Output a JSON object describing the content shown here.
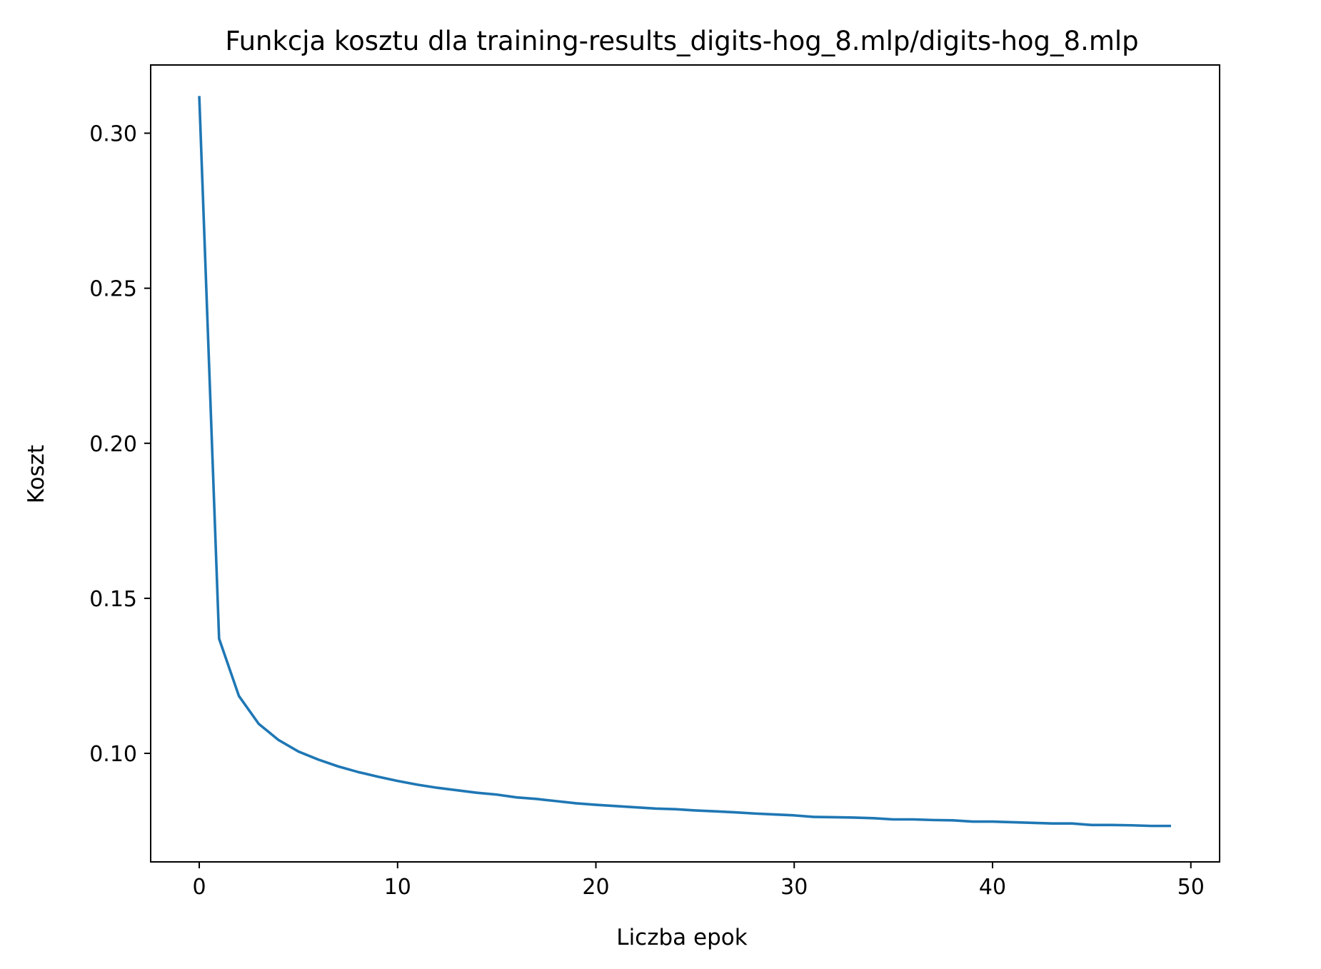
{
  "chart_data": {
    "type": "line",
    "title": "Funkcja kosztu dla training-results_digits-hog_8.mlp/digits-hog_8.mlp",
    "xlabel": "Liczba epok",
    "ylabel": "Koszt",
    "xlim": [
      -2.45,
      51.45
    ],
    "ylim": [
      0.065,
      0.322
    ],
    "xticks": [
      0,
      10,
      20,
      30,
      40,
      50
    ],
    "xtick_labels": [
      "0",
      "10",
      "20",
      "30",
      "40",
      "50"
    ],
    "yticks": [
      0.1,
      0.15,
      0.2,
      0.25,
      0.3
    ],
    "ytick_labels": [
      "0.10",
      "0.15",
      "0.20",
      "0.25",
      "0.30"
    ],
    "grid": false,
    "line_color": "#1f77b4",
    "series": [
      {
        "x": [
          0,
          1,
          2,
          3,
          4,
          5,
          6,
          7,
          8,
          9,
          10,
          11,
          12,
          13,
          14,
          15,
          16,
          17,
          18,
          19,
          20,
          21,
          22,
          23,
          24,
          25,
          26,
          27,
          28,
          29,
          30,
          31,
          32,
          33,
          34,
          35,
          36,
          37,
          38,
          39,
          40,
          41,
          42,
          43,
          44,
          45,
          46,
          47,
          48,
          49
        ],
        "values": [
          0.312,
          0.137,
          0.1185,
          0.1095,
          0.1043,
          0.1006,
          0.098,
          0.0958,
          0.094,
          0.0925,
          0.0911,
          0.0899,
          0.0889,
          0.0881,
          0.0873,
          0.0867,
          0.0858,
          0.0853,
          0.0846,
          0.0839,
          0.0834,
          0.083,
          0.0826,
          0.0822,
          0.082,
          0.0816,
          0.0813,
          0.081,
          0.0806,
          0.0803,
          0.08,
          0.0795,
          0.0794,
          0.0793,
          0.0791,
          0.0787,
          0.0787,
          0.0785,
          0.0784,
          0.078,
          0.078,
          0.0778,
          0.0776,
          0.0774,
          0.0774,
          0.0769,
          0.0769,
          0.0768,
          0.0766,
          0.0766
        ]
      }
    ]
  }
}
